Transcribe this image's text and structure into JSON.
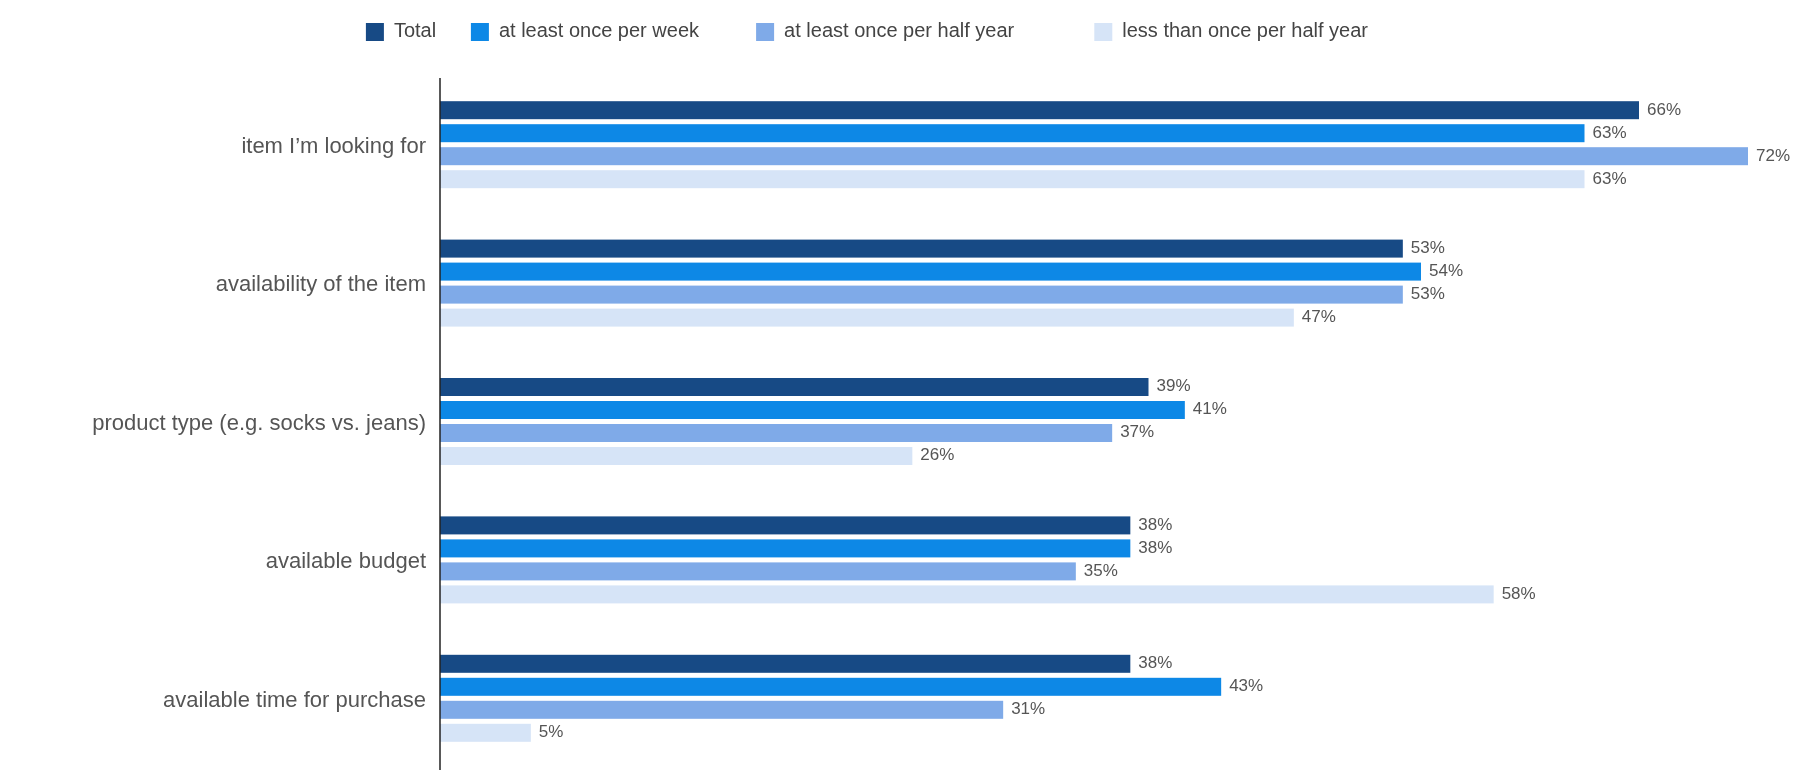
{
  "chart_data": {
    "type": "bar",
    "orientation": "horizontal",
    "legend": "top",
    "categories": [
      "item I’m looking for",
      "availability of the item",
      "product type (e.g. socks vs. jeans)",
      "available budget",
      "available time for purchase"
    ],
    "series": [
      {
        "name": "Total",
        "color": "#174a85",
        "values": [
          66,
          53,
          39,
          38,
          38
        ],
        "value_labels": [
          "66%",
          "53%",
          "39%",
          "38%",
          "38%"
        ]
      },
      {
        "name": "at least once per week",
        "color": "#0d88e6",
        "values": [
          63,
          54,
          41,
          38,
          43
        ],
        "value_labels": [
          "63%",
          "54%",
          "41%",
          "38%",
          "43%"
        ]
      },
      {
        "name": "at least once per half year",
        "color": "#7faae8",
        "values": [
          72,
          53,
          37,
          35,
          31
        ],
        "value_labels": [
          "72%",
          "53%",
          "37%",
          "35%",
          "31%"
        ]
      },
      {
        "name": "less than once per half year",
        "color": "#d6e4f7",
        "values": [
          63,
          47,
          26,
          58,
          5
        ],
        "value_labels": [
          "63%",
          "47%",
          "26%",
          "58%",
          "5%"
        ]
      }
    ]
  }
}
